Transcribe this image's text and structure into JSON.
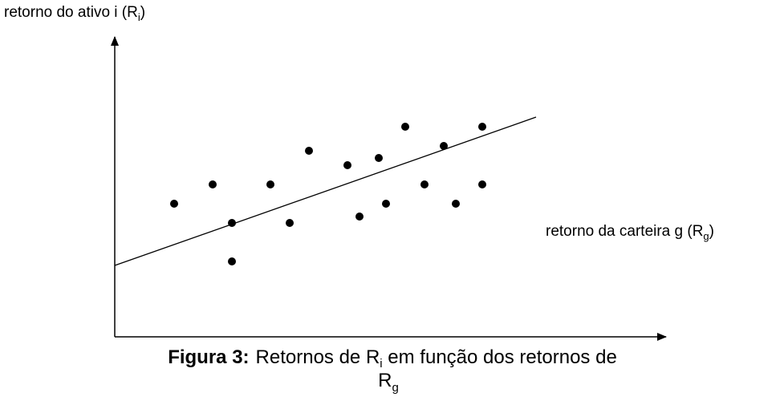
{
  "y_axis_label": {
    "text": "retorno do ativo i (R",
    "sub": "i",
    "close": ")"
  },
  "x_axis_label": {
    "text": "retorno da carteira g (R",
    "sub": "g",
    "close": ")"
  },
  "caption": {
    "label": "Figura 3:",
    "text": "Retornos de R",
    "sub1": "i",
    "text2": " em função dos retornos de",
    "line2": "R",
    "sub2": "g"
  }
}
